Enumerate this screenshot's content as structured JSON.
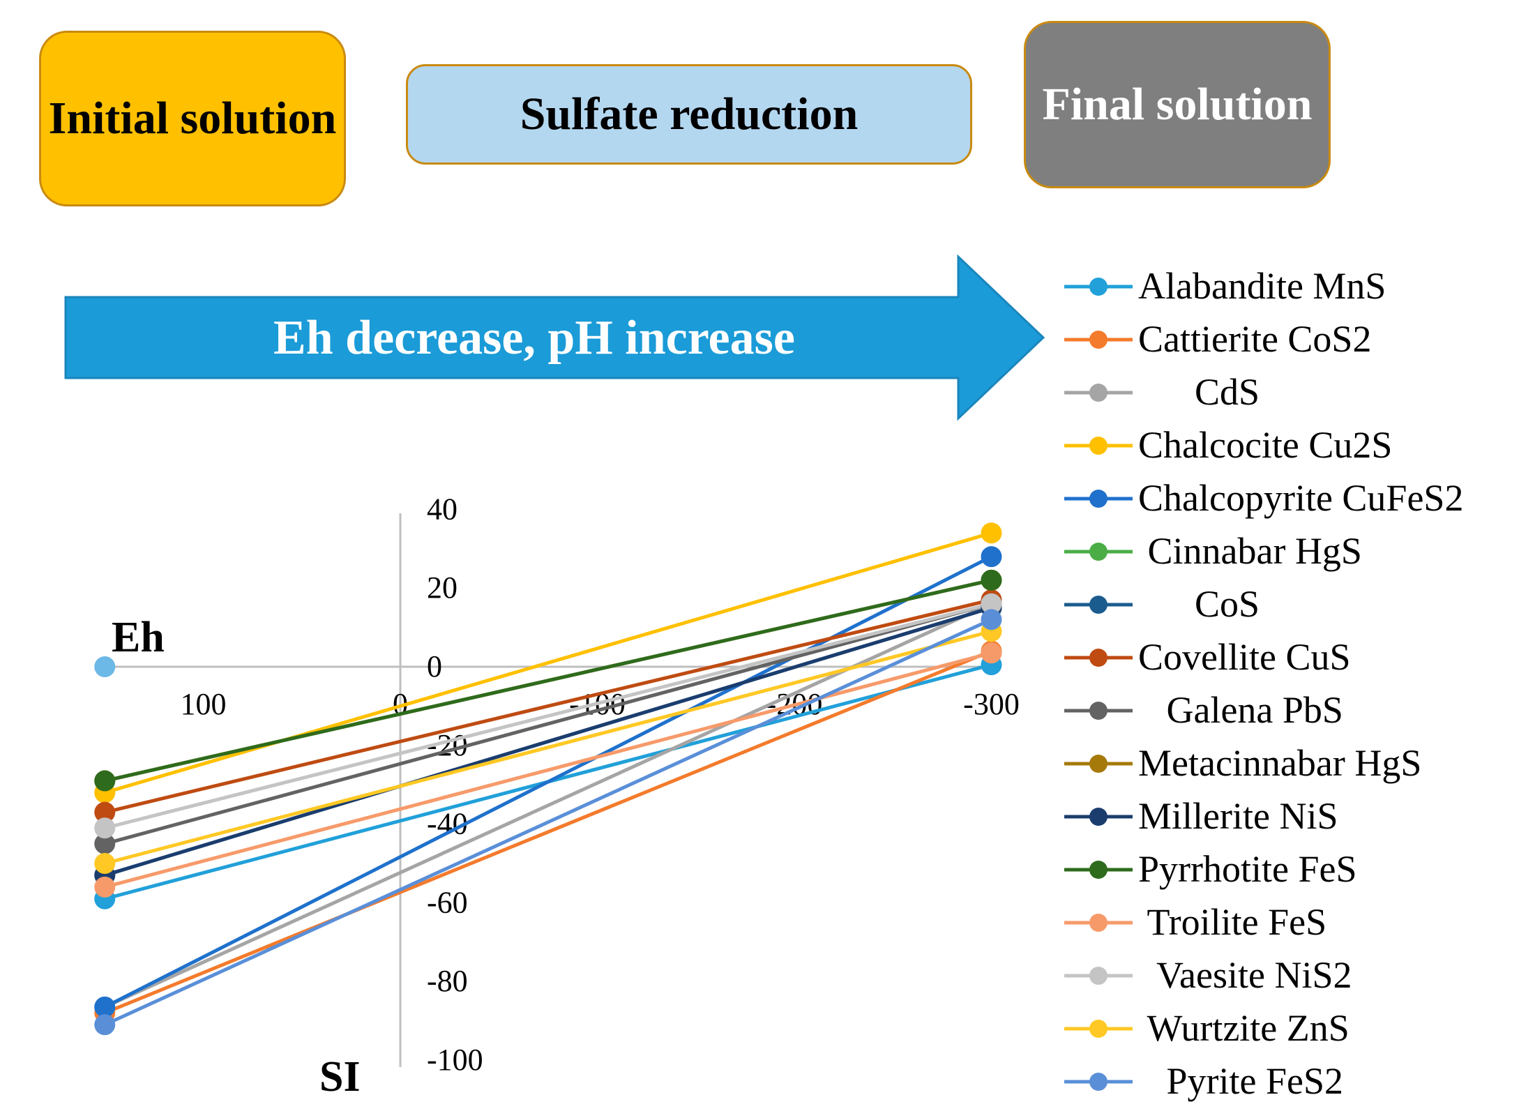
{
  "header": {
    "initial_label": "Initial solution",
    "sulfate_label": "Sulfate reduction",
    "final_label": "Final solution",
    "arrow_label": "Eh decrease, pH increase"
  },
  "colors": {
    "initial_box": "#ffc000",
    "sulfate_box": "#b4d7f0",
    "final_box": "#7f7f7f",
    "box_border": "#c98a10",
    "arrow": "#1b9bd7"
  },
  "chart_data": {
    "type": "line",
    "title": "",
    "xlabel": "Eh",
    "ylabel": "SI",
    "x_reversed": true,
    "xlim": [
      150,
      -300
    ],
    "ylim": [
      -100,
      40
    ],
    "x_ticks": [
      "100",
      "0",
      "-100",
      "-200",
      "-300"
    ],
    "y_ticks": [
      "40",
      "20",
      "0",
      "-20",
      "-40",
      "-60",
      "-80",
      "-100"
    ],
    "grid": false,
    "legend_position": "right",
    "series": [
      {
        "name": "Alabandite MnS",
        "color": "#21a0d9",
        "label": "Alabandite MnS",
        "points": [
          [
            150,
            -59
          ],
          [
            -300,
            0.5
          ]
        ]
      },
      {
        "name": "Cattierite CoS2",
        "color": "#f47b2c",
        "label": "Cattierite CoS2",
        "points": [
          [
            150,
            -88
          ],
          [
            -300,
            4
          ]
        ]
      },
      {
        "name": "CdS",
        "color": "#a5a5a5",
        "label": "      CdS",
        "points": [
          [
            150,
            -86.5
          ],
          [
            -300,
            16
          ]
        ]
      },
      {
        "name": "Chalcocite Cu2S",
        "color": "#ffc000",
        "label": "Chalcocite Cu2S",
        "points": [
          [
            150,
            -32
          ],
          [
            -300,
            34
          ]
        ]
      },
      {
        "name": "Chalcopyrite CuFeS2",
        "color": "#1f71cc",
        "label": "Chalcopyrite CuFeS2",
        "points": [
          [
            150,
            -86.5
          ],
          [
            -300,
            28
          ]
        ]
      },
      {
        "name": "Cinnabar HgS",
        "color": "#4aad45",
        "label": " Cinnabar HgS",
        "points": [
          [
            150,
            -29
          ],
          [
            -300,
            22
          ]
        ]
      },
      {
        "name": "CoS",
        "color": "#1b5c8e",
        "label": "      CoS",
        "points": [
          [
            150,
            -53
          ],
          [
            -300,
            15
          ]
        ]
      },
      {
        "name": "Covellite CuS",
        "color": "#bf4b12",
        "label": "Covellite CuS",
        "points": [
          [
            150,
            -37
          ],
          [
            -300,
            17
          ]
        ]
      },
      {
        "name": "Galena PbS",
        "color": "#636363",
        "label": "   Galena PbS",
        "points": [
          [
            150,
            -45
          ],
          [
            -300,
            16
          ]
        ]
      },
      {
        "name": "Metacinnabar HgS",
        "color": "#a6790b",
        "label": "Metacinnabar HgS",
        "points": [
          [
            150,
            -29
          ],
          [
            -300,
            22
          ]
        ]
      },
      {
        "name": "Millerite NiS",
        "color": "#1b3d6e",
        "label": "Millerite NiS",
        "points": [
          [
            150,
            -53
          ],
          [
            -300,
            15
          ]
        ]
      },
      {
        "name": "Pyrrhotite FeS",
        "color": "#2e6b1d",
        "label": "Pyrrhotite FeS",
        "points": [
          [
            150,
            -29
          ],
          [
            -300,
            22
          ]
        ]
      },
      {
        "name": "Troilite FeS",
        "color": "#f79a6a",
        "label": " Troilite FeS",
        "points": [
          [
            150,
            -56
          ],
          [
            -300,
            3.5
          ]
        ]
      },
      {
        "name": "Vaesite NiS2",
        "color": "#c4c4c4",
        "label": "  Vaesite NiS2",
        "points": [
          [
            150,
            -41
          ],
          [
            -300,
            16
          ]
        ]
      },
      {
        "name": "Wurtzite ZnS",
        "color": "#ffc824",
        "label": " Wurtzite ZnS",
        "points": [
          [
            150,
            -50
          ],
          [
            -300,
            9
          ]
        ]
      },
      {
        "name": "Pyrite FeS2",
        "color": "#5a8fd8",
        "label": "   Pyrite FeS2",
        "points": [
          [
            150,
            -91
          ],
          [
            -300,
            12
          ]
        ]
      }
    ],
    "extra_points": [
      {
        "color": "#6cb8e6",
        "point": [
          150,
          0
        ]
      }
    ]
  }
}
